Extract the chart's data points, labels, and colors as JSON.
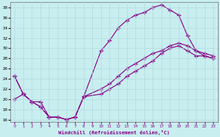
{
  "xlabel": "Windchill (Refroidissement éolien,°C)",
  "background_color": "#c8eef0",
  "grid_color": "#b0d8dc",
  "line_color": "#880088",
  "xlim_min": -0.5,
  "xlim_max": 23.5,
  "ylim_min": 15.5,
  "ylim_max": 39.0,
  "xticks": [
    0,
    1,
    2,
    3,
    4,
    5,
    6,
    7,
    8,
    9,
    10,
    11,
    12,
    13,
    14,
    15,
    16,
    17,
    18,
    19,
    20,
    21,
    22,
    23
  ],
  "yticks": [
    16,
    18,
    20,
    22,
    24,
    26,
    28,
    30,
    32,
    34,
    36,
    38
  ],
  "curve1_x": [
    0,
    1,
    2,
    3,
    4,
    5,
    6,
    7,
    8,
    10,
    11,
    12,
    13,
    14,
    15,
    16,
    17,
    18,
    19,
    20,
    21,
    22,
    23
  ],
  "curve1_y": [
    24.5,
    21.0,
    19.5,
    18.5,
    16.5,
    16.5,
    16.0,
    16.5,
    20.5,
    29.5,
    31.5,
    34.0,
    35.5,
    36.5,
    37.0,
    38.0,
    38.5,
    37.5,
    36.5,
    32.5,
    29.5,
    29.0,
    28.5
  ],
  "curve2_x": [
    0,
    1,
    2,
    3,
    4,
    5,
    6,
    7,
    8,
    10,
    11,
    12,
    13,
    14,
    15,
    16,
    17,
    18,
    19,
    20,
    21,
    22,
    23
  ],
  "curve2_y": [
    24.5,
    21.0,
    19.5,
    18.5,
    16.5,
    16.5,
    16.0,
    16.5,
    20.5,
    22.0,
    23.0,
    24.5,
    26.0,
    27.0,
    28.0,
    29.0,
    29.5,
    30.5,
    31.0,
    30.5,
    29.5,
    28.5,
    28.0
  ],
  "curve3_x": [
    0,
    1,
    2,
    3,
    4,
    5,
    6,
    7,
    8,
    10,
    11,
    12,
    13,
    14,
    15,
    16,
    17,
    18,
    19,
    20,
    21,
    22,
    23
  ],
  "curve3_y": [
    20.0,
    21.0,
    19.5,
    19.5,
    16.5,
    16.5,
    16.0,
    16.5,
    20.5,
    21.0,
    22.0,
    23.0,
    24.5,
    25.5,
    26.5,
    27.5,
    29.0,
    30.0,
    30.5,
    29.5,
    28.5,
    28.5,
    28.0
  ]
}
